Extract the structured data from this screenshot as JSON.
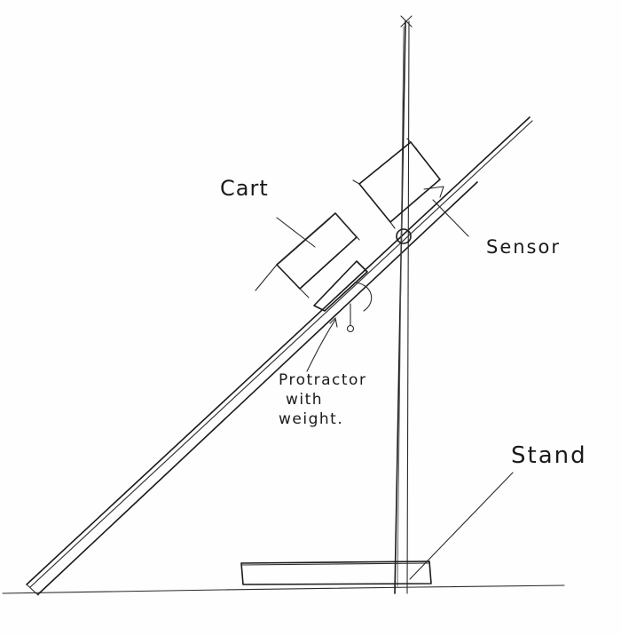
{
  "labels": {
    "cart": "Cart",
    "sensor": "Sensor",
    "protractor": [
      "Protractor",
      "with",
      "weight."
    ],
    "stand": "Stand"
  },
  "colors": {
    "ink": "#1a1a1a",
    "paper": "#fefefe"
  }
}
